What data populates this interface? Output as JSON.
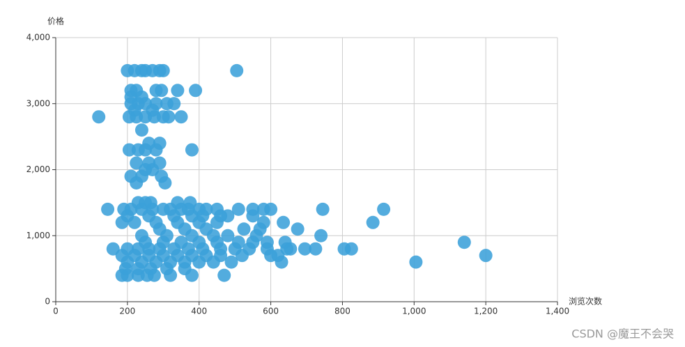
{
  "chart_data": {
    "type": "scatter",
    "x_label": "浏览次数",
    "y_label": "价格",
    "watermark": "CSDN @魔王不会哭",
    "color": "#3ba1da",
    "grid": true,
    "xlim": [
      0,
      1400
    ],
    "xticks": [
      0,
      200,
      400,
      600,
      800,
      {
        "value": 1000,
        "label": "1,000"
      },
      {
        "value": 1200,
        "label": "1,200"
      },
      {
        "value": 1400,
        "label": "1,400"
      }
    ],
    "ylim": [
      0,
      4000
    ],
    "yticks": [
      0,
      {
        "value": 1000,
        "label": "1,000"
      },
      {
        "value": 2000,
        "label": "2,000"
      },
      {
        "value": 3000,
        "label": "3,000"
      },
      {
        "value": 4000,
        "label": "4,000"
      }
    ],
    "x": [
      120,
      145,
      160,
      505,
      200,
      220,
      240,
      250,
      270,
      290,
      300,
      210,
      225,
      280,
      295,
      340,
      390,
      210,
      240,
      210,
      230,
      250,
      280,
      310,
      330,
      220,
      270,
      205,
      225,
      250,
      275,
      300,
      315,
      350,
      240,
      260,
      290,
      205,
      230,
      250,
      280,
      380,
      225,
      260,
      290,
      250,
      270,
      210,
      240,
      295,
      225,
      305,
      230,
      250,
      265,
      340,
      375,
      190,
      210,
      240,
      270,
      300,
      320,
      350,
      370,
      400,
      420,
      450,
      510,
      550,
      580,
      600,
      745,
      915,
      200,
      260,
      330,
      380,
      410,
      460,
      480,
      550,
      185,
      220,
      280,
      340,
      400,
      450,
      580,
      635,
      885,
      290,
      360,
      420,
      525,
      570,
      675,
      240,
      310,
      380,
      440,
      480,
      560,
      740,
      250,
      300,
      350,
      400,
      450,
      510,
      550,
      590,
      640,
      1140,
      200,
      230,
      260,
      290,
      330,
      370,
      410,
      460,
      500,
      540,
      590,
      645,
      655,
      695,
      725,
      805,
      825,
      185,
      220,
      260,
      300,
      340,
      380,
      420,
      460,
      520,
      600,
      620,
      1200,
      200,
      240,
      280,
      320,
      360,
      400,
      440,
      490,
      630,
      1005,
      195,
      230,
      265,
      310,
      360,
      185,
      200,
      230,
      255,
      275,
      320,
      380,
      470
    ],
    "values": [
      2800,
      1400,
      800,
      3500,
      3500,
      3500,
      3500,
      3500,
      3500,
      3500,
      3500,
      3200,
      3200,
      3200,
      3200,
      3200,
      3200,
      3100,
      3100,
      3000,
      3000,
      3000,
      3000,
      3000,
      3000,
      2900,
      2900,
      2800,
      2800,
      2800,
      2800,
      2800,
      2800,
      2800,
      2600,
      2400,
      2400,
      2300,
      2300,
      2300,
      2300,
      2300,
      2100,
      2100,
      2100,
      2000,
      2000,
      1900,
      1900,
      1900,
      1800,
      1800,
      1500,
      1500,
      1500,
      1500,
      1500,
      1400,
      1400,
      1400,
      1400,
      1400,
      1400,
      1400,
      1400,
      1400,
      1400,
      1400,
      1400,
      1400,
      1400,
      1400,
      1400,
      1400,
      1300,
      1300,
      1300,
      1300,
      1300,
      1300,
      1300,
      1300,
      1200,
      1200,
      1200,
      1200,
      1200,
      1200,
      1200,
      1200,
      1200,
      1100,
      1100,
      1100,
      1100,
      1100,
      1100,
      1000,
      1000,
      1000,
      1000,
      1000,
      1000,
      1000,
      900,
      900,
      900,
      900,
      900,
      900,
      900,
      900,
      900,
      900,
      800,
      800,
      800,
      800,
      800,
      800,
      800,
      800,
      800,
      800,
      800,
      800,
      800,
      800,
      800,
      800,
      800,
      700,
      700,
      700,
      700,
      700,
      700,
      700,
      700,
      700,
      700,
      700,
      700,
      600,
      600,
      600,
      600,
      600,
      600,
      600,
      600,
      600,
      600,
      500,
      500,
      500,
      500,
      500,
      400,
      400,
      400,
      400,
      400,
      400,
      400,
      400
    ]
  }
}
